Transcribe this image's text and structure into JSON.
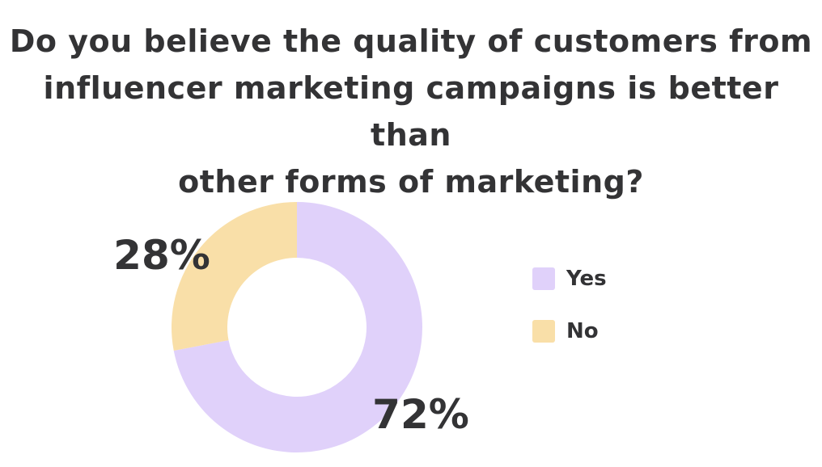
{
  "title_lines": [
    "Do you believe the quality of customers from",
    "influencer marketing campaigns is better than",
    "other forms of marketing?"
  ],
  "chart_data": {
    "type": "pie",
    "donut": true,
    "title": "Do you believe the quality of customers from influencer marketing campaigns is better than other forms of marketing?",
    "categories": [
      "Yes",
      "No"
    ],
    "values": [
      72,
      28
    ],
    "data_labels": [
      "72%",
      "28%"
    ],
    "colors": [
      "#e0d1fa",
      "#f9dfa8"
    ],
    "legend": [
      "Yes",
      "No"
    ],
    "legend_position": "right"
  }
}
